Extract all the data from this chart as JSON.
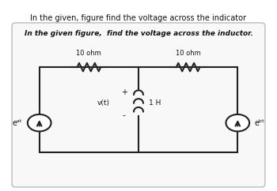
{
  "title_top": "In the given, figure find the voltage across the indicator",
  "box_title": "In the given figure,  find the voltage across the inductor.",
  "r1_label": "10 ohm",
  "r2_label": "10 ohm",
  "l_label": "1 H",
  "v_label": "v(t)",
  "src_left": "eᵃᵗ",
  "src_right": "eᵇᵗ",
  "plus_label": "+",
  "minus_label": "-",
  "bg_color": "#ffffff",
  "box_bg": "#f8f8f8",
  "line_color": "#222222",
  "text_color": "#111111"
}
